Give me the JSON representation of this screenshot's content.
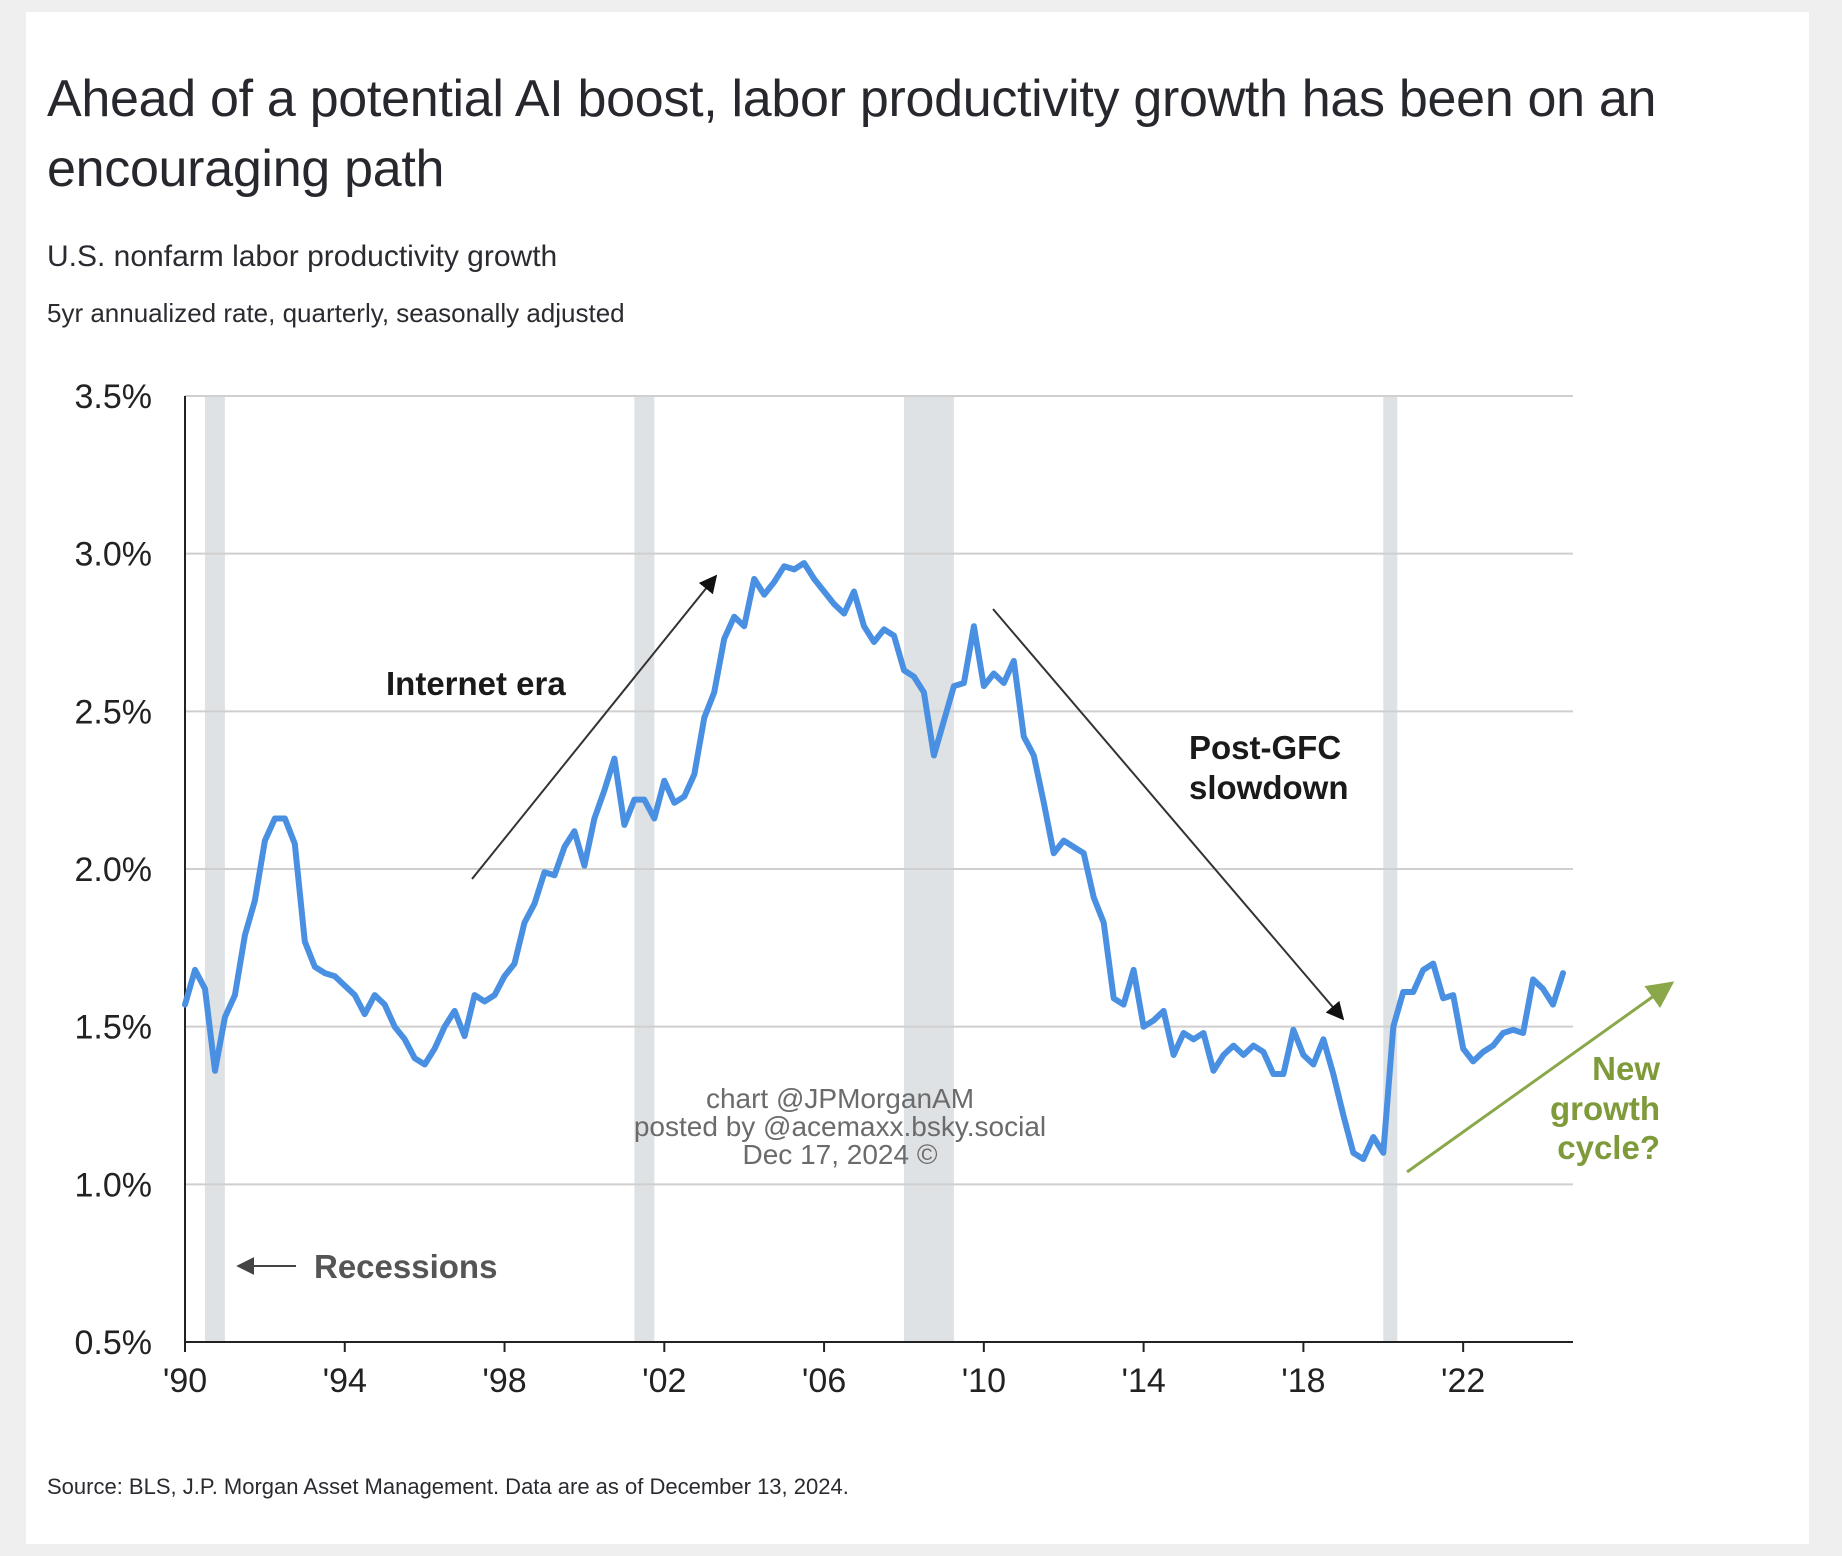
{
  "title": "Ahead of a potential AI boost, labor productivity growth has been on an encouraging path",
  "subtitle": "U.S. nonfarm labor productivity growth",
  "note": "5yr annualized rate, quarterly, seasonally adjusted",
  "source": "Source: BLS, J.P. Morgan Asset Management. Data are as of December 13, 2024.",
  "colors": {
    "series": "#4a90e2",
    "recession": "#dfe2e4",
    "grid": "#cfcfcf",
    "green": "#8aa84a"
  },
  "annotations": {
    "internet_era": "Internet era",
    "post_gfc_1": "Post-GFC",
    "post_gfc_2": "slowdown",
    "recessions": "Recessions",
    "new_1": "New",
    "new_2": "growth",
    "new_3": "cycle?"
  },
  "watermark": [
    "chart @JPMorganAM",
    "posted by @acemaxx.bsky.social",
    "Dec 17, 2024 ©"
  ],
  "chart_data": {
    "type": "line",
    "xlim": [
      1990,
      2024.75
    ],
    "ylim": [
      0.5,
      3.5
    ],
    "xticks": [
      {
        "v": 1990,
        "label": "'90"
      },
      {
        "v": 1994,
        "label": "'94"
      },
      {
        "v": 1998,
        "label": "'98"
      },
      {
        "v": 2002,
        "label": "'02"
      },
      {
        "v": 2006,
        "label": "'06"
      },
      {
        "v": 2010,
        "label": "'10"
      },
      {
        "v": 2014,
        "label": "'14"
      },
      {
        "v": 2018,
        "label": "'18"
      },
      {
        "v": 2022,
        "label": "'22"
      }
    ],
    "yticks": [
      {
        "v": 0.5,
        "label": "0.5%"
      },
      {
        "v": 1.0,
        "label": "1.0%"
      },
      {
        "v": 1.5,
        "label": "1.5%"
      },
      {
        "v": 2.0,
        "label": "2.0%"
      },
      {
        "v": 2.5,
        "label": "2.5%"
      },
      {
        "v": 3.0,
        "label": "3.0%"
      },
      {
        "v": 3.5,
        "label": "3.5%"
      }
    ],
    "grid": true,
    "recessions": [
      [
        1990.5,
        1991.0
      ],
      [
        2001.25,
        2001.75
      ],
      [
        2008.0,
        2009.25
      ],
      [
        2020.0,
        2020.25
      ]
    ],
    "series": [
      {
        "values": [
          [
            1990.0,
            1.57
          ],
          [
            1990.25,
            1.68
          ],
          [
            1990.5,
            1.62
          ],
          [
            1990.75,
            1.36
          ],
          [
            1991.0,
            1.53
          ],
          [
            1991.25,
            1.6
          ],
          [
            1991.5,
            1.79
          ],
          [
            1991.75,
            1.9
          ],
          [
            1992.0,
            2.09
          ],
          [
            1992.25,
            2.16
          ],
          [
            1992.5,
            2.16
          ],
          [
            1992.75,
            2.08
          ],
          [
            1993.0,
            1.77
          ],
          [
            1993.25,
            1.69
          ],
          [
            1993.5,
            1.67
          ],
          [
            1993.75,
            1.66
          ],
          [
            1994.0,
            1.63
          ],
          [
            1994.25,
            1.6
          ],
          [
            1994.5,
            1.54
          ],
          [
            1994.75,
            1.6
          ],
          [
            1995.0,
            1.57
          ],
          [
            1995.25,
            1.5
          ],
          [
            1995.5,
            1.46
          ],
          [
            1995.75,
            1.4
          ],
          [
            1996.0,
            1.38
          ],
          [
            1996.25,
            1.43
          ],
          [
            1996.5,
            1.5
          ],
          [
            1996.75,
            1.55
          ],
          [
            1997.0,
            1.47
          ],
          [
            1997.25,
            1.6
          ],
          [
            1997.5,
            1.58
          ],
          [
            1997.75,
            1.6
          ],
          [
            1998.0,
            1.66
          ],
          [
            1998.25,
            1.7
          ],
          [
            1998.5,
            1.83
          ],
          [
            1998.75,
            1.89
          ],
          [
            1999.0,
            1.99
          ],
          [
            1999.25,
            1.98
          ],
          [
            1999.5,
            2.07
          ],
          [
            1999.75,
            2.12
          ],
          [
            2000.0,
            2.01
          ],
          [
            2000.25,
            2.16
          ],
          [
            2000.5,
            2.25
          ],
          [
            2000.75,
            2.35
          ],
          [
            2001.0,
            2.14
          ],
          [
            2001.25,
            2.22
          ],
          [
            2001.5,
            2.22
          ],
          [
            2001.75,
            2.16
          ],
          [
            2002.0,
            2.28
          ],
          [
            2002.25,
            2.21
          ],
          [
            2002.5,
            2.23
          ],
          [
            2002.75,
            2.3
          ],
          [
            2003.0,
            2.48
          ],
          [
            2003.25,
            2.56
          ],
          [
            2003.5,
            2.73
          ],
          [
            2003.75,
            2.8
          ],
          [
            2004.0,
            2.77
          ],
          [
            2004.25,
            2.92
          ],
          [
            2004.5,
            2.87
          ],
          [
            2004.75,
            2.91
          ],
          [
            2005.0,
            2.96
          ],
          [
            2005.25,
            2.95
          ],
          [
            2005.5,
            2.97
          ],
          [
            2005.75,
            2.92
          ],
          [
            2006.0,
            2.88
          ],
          [
            2006.25,
            2.84
          ],
          [
            2006.5,
            2.81
          ],
          [
            2006.75,
            2.88
          ],
          [
            2007.0,
            2.77
          ],
          [
            2007.25,
            2.72
          ],
          [
            2007.5,
            2.76
          ],
          [
            2007.75,
            2.74
          ],
          [
            2008.0,
            2.63
          ],
          [
            2008.25,
            2.61
          ],
          [
            2008.5,
            2.56
          ],
          [
            2008.75,
            2.36
          ],
          [
            2009.0,
            2.47
          ],
          [
            2009.25,
            2.58
          ],
          [
            2009.5,
            2.59
          ],
          [
            2009.75,
            2.77
          ],
          [
            2010.0,
            2.58
          ],
          [
            2010.25,
            2.62
          ],
          [
            2010.5,
            2.59
          ],
          [
            2010.75,
            2.66
          ],
          [
            2011.0,
            2.42
          ],
          [
            2011.25,
            2.36
          ],
          [
            2011.5,
            2.21
          ],
          [
            2011.75,
            2.05
          ],
          [
            2012.0,
            2.09
          ],
          [
            2012.25,
            2.07
          ],
          [
            2012.5,
            2.05
          ],
          [
            2012.75,
            1.91
          ],
          [
            2013.0,
            1.83
          ],
          [
            2013.25,
            1.59
          ],
          [
            2013.5,
            1.57
          ],
          [
            2013.75,
            1.68
          ],
          [
            2014.0,
            1.5
          ],
          [
            2014.25,
            1.52
          ],
          [
            2014.5,
            1.55
          ],
          [
            2014.75,
            1.41
          ],
          [
            2015.0,
            1.48
          ],
          [
            2015.25,
            1.46
          ],
          [
            2015.5,
            1.48
          ],
          [
            2015.75,
            1.36
          ],
          [
            2016.0,
            1.41
          ],
          [
            2016.25,
            1.44
          ],
          [
            2016.5,
            1.41
          ],
          [
            2016.75,
            1.44
          ],
          [
            2017.0,
            1.42
          ],
          [
            2017.25,
            1.35
          ],
          [
            2017.5,
            1.35
          ],
          [
            2017.75,
            1.49
          ],
          [
            2018.0,
            1.41
          ],
          [
            2018.25,
            1.38
          ],
          [
            2018.5,
            1.46
          ],
          [
            2018.75,
            1.35
          ],
          [
            2019.0,
            1.22
          ],
          [
            2019.25,
            1.1
          ],
          [
            2019.5,
            1.08
          ],
          [
            2019.75,
            1.15
          ],
          [
            2020.0,
            1.1
          ],
          [
            2020.25,
            1.5
          ],
          [
            2020.5,
            1.61
          ],
          [
            2020.75,
            1.61
          ],
          [
            2021.0,
            1.68
          ],
          [
            2021.25,
            1.7
          ],
          [
            2021.5,
            1.59
          ],
          [
            2021.75,
            1.6
          ],
          [
            2022.0,
            1.43
          ],
          [
            2022.25,
            1.39
          ],
          [
            2022.5,
            1.42
          ],
          [
            2022.75,
            1.44
          ],
          [
            2023.0,
            1.48
          ],
          [
            2023.25,
            1.49
          ],
          [
            2023.5,
            1.48
          ],
          [
            2023.75,
            1.65
          ],
          [
            2024.0,
            1.62
          ],
          [
            2024.25,
            1.57
          ],
          [
            2024.5,
            1.67
          ]
        ]
      }
    ]
  }
}
